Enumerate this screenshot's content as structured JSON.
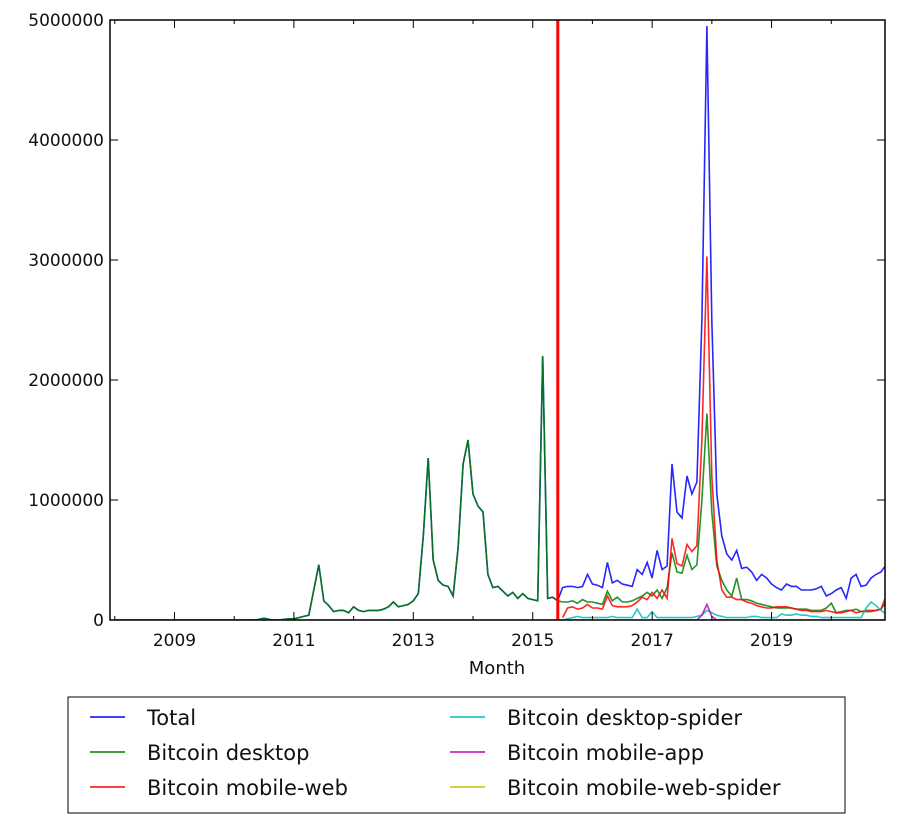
{
  "chart_data": {
    "type": "line",
    "title": "",
    "xlabel": "Month",
    "ylabel": "",
    "xlim": [
      2007.92,
      2020.9
    ],
    "ylim": [
      0,
      5000000
    ],
    "x_ticks": [
      2009,
      2011,
      2013,
      2015,
      2017,
      2019
    ],
    "x_minor_ticks": [
      2008,
      2010,
      2012,
      2014,
      2016,
      2018,
      2020
    ],
    "y_ticks": [
      0,
      1000000,
      2000000,
      3000000,
      4000000,
      5000000
    ],
    "y_tick_labels": [
      "0",
      "1000000",
      "2000000",
      "3000000",
      "4000000",
      "5000000"
    ],
    "grid": false,
    "legend_placement": "below",
    "annotations": [
      {
        "type": "vline",
        "x": 2015.42,
        "color": "#ff0000"
      }
    ],
    "series": [
      {
        "name": "Total",
        "color": "#0000ff",
        "start": "2008-01",
        "values": [
          0,
          0,
          0,
          0,
          0,
          0,
          0,
          0,
          0,
          0,
          0,
          0,
          0,
          0,
          0,
          0,
          0,
          0,
          0,
          0,
          0,
          0,
          0,
          0,
          0,
          0,
          0,
          0,
          0,
          5000,
          15000,
          5000,
          0,
          0,
          5000,
          10000,
          10000,
          20000,
          30000,
          40000,
          250000,
          460000,
          160000,
          120000,
          70000,
          80000,
          80000,
          60000,
          110000,
          80000,
          70000,
          80000,
          80000,
          80000,
          90000,
          110000,
          150000,
          110000,
          120000,
          130000,
          160000,
          220000,
          700000,
          1350000,
          500000,
          330000,
          290000,
          280000,
          200000,
          600000,
          1300000,
          1500000,
          1050000,
          950000,
          900000,
          380000,
          270000,
          280000,
          240000,
          200000,
          230000,
          180000,
          220000,
          180000,
          170000,
          160000,
          2200000,
          180000,
          190000,
          160000,
          270000,
          280000,
          280000,
          270000,
          280000,
          380000,
          300000,
          290000,
          270000,
          480000,
          310000,
          330000,
          300000,
          290000,
          280000,
          420000,
          380000,
          480000,
          350000,
          580000,
          420000,
          450000,
          1300000,
          900000,
          850000,
          1200000,
          1050000,
          1150000,
          2500000,
          4950000,
          2500000,
          1050000,
          700000,
          550000,
          500000,
          580000,
          430000,
          440000,
          400000,
          330000,
          380000,
          350000,
          300000,
          270000,
          250000,
          300000,
          280000,
          280000,
          250000,
          250000,
          250000,
          260000,
          280000,
          200000,
          220000,
          250000,
          270000,
          180000,
          350000,
          380000,
          280000,
          290000,
          350000,
          380000,
          400000,
          460000
        ]
      },
      {
        "name": "Bitcoin desktop",
        "color": "#008000",
        "start": "2008-01",
        "values": [
          0,
          0,
          0,
          0,
          0,
          0,
          0,
          0,
          0,
          0,
          0,
          0,
          0,
          0,
          0,
          0,
          0,
          0,
          0,
          0,
          0,
          0,
          0,
          0,
          0,
          0,
          0,
          0,
          0,
          5000,
          15000,
          5000,
          0,
          0,
          5000,
          10000,
          10000,
          20000,
          30000,
          40000,
          250000,
          460000,
          160000,
          120000,
          70000,
          80000,
          80000,
          60000,
          110000,
          80000,
          70000,
          80000,
          80000,
          80000,
          90000,
          110000,
          150000,
          110000,
          120000,
          130000,
          160000,
          220000,
          700000,
          1350000,
          500000,
          330000,
          290000,
          280000,
          200000,
          600000,
          1300000,
          1500000,
          1050000,
          950000,
          900000,
          380000,
          270000,
          280000,
          240000,
          200000,
          230000,
          180000,
          220000,
          180000,
          170000,
          160000,
          2200000,
          180000,
          190000,
          160000,
          150000,
          150000,
          160000,
          140000,
          170000,
          150000,
          150000,
          140000,
          130000,
          240000,
          160000,
          190000,
          150000,
          150000,
          160000,
          180000,
          200000,
          230000,
          200000,
          250000,
          180000,
          270000,
          560000,
          400000,
          390000,
          540000,
          420000,
          460000,
          1000000,
          1720000,
          900000,
          450000,
          330000,
          250000,
          200000,
          350000,
          170000,
          170000,
          160000,
          140000,
          130000,
          120000,
          110000,
          100000,
          100000,
          100000,
          100000,
          90000,
          90000,
          90000,
          80000,
          80000,
          80000,
          100000,
          140000,
          60000,
          70000,
          80000,
          80000,
          90000,
          70000,
          70000,
          70000,
          80000,
          90000,
          150000
        ]
      },
      {
        "name": "Bitcoin mobile-web",
        "color": "#ff0000",
        "start": "2015-07",
        "values": [
          20000,
          100000,
          110000,
          90000,
          100000,
          130000,
          100000,
          100000,
          90000,
          200000,
          120000,
          110000,
          110000,
          110000,
          120000,
          150000,
          190000,
          170000,
          230000,
          180000,
          250000,
          180000,
          680000,
          470000,
          450000,
          630000,
          570000,
          620000,
          1500000,
          3030000,
          1200000,
          500000,
          250000,
          190000,
          190000,
          170000,
          170000,
          150000,
          140000,
          120000,
          110000,
          100000,
          100000,
          110000,
          110000,
          110000,
          100000,
          90000,
          80000,
          80000,
          70000,
          70000,
          70000,
          80000,
          70000,
          60000,
          60000,
          70000,
          80000,
          60000,
          70000,
          80000,
          80000,
          80000,
          90000,
          200000
        ]
      },
      {
        "name": "Bitcoin desktop-spider",
        "color": "#00bfbf",
        "start": "2015-07",
        "values": [
          0,
          10000,
          20000,
          30000,
          20000,
          20000,
          20000,
          20000,
          20000,
          20000,
          30000,
          20000,
          20000,
          20000,
          20000,
          90000,
          20000,
          20000,
          70000,
          20000,
          20000,
          20000,
          20000,
          20000,
          20000,
          20000,
          20000,
          30000,
          40000,
          80000,
          60000,
          40000,
          30000,
          20000,
          20000,
          20000,
          20000,
          20000,
          30000,
          30000,
          20000,
          20000,
          20000,
          20000,
          50000,
          40000,
          40000,
          50000,
          40000,
          40000,
          30000,
          30000,
          20000,
          20000,
          20000,
          20000,
          20000,
          20000,
          20000,
          20000,
          20000,
          100000,
          150000,
          120000,
          80000,
          50000
        ]
      },
      {
        "name": "Bitcoin mobile-app",
        "color": "#bf00bf",
        "start": "2017-04",
        "values": [
          0,
          0,
          0,
          0,
          0,
          0,
          0,
          40000,
          130000,
          30000,
          0,
          0,
          0
        ]
      },
      {
        "name": "Bitcoin mobile-web-spider",
        "color": "#bfbf00",
        "start": "2008-01",
        "values": [
          0,
          0,
          0,
          0,
          0,
          0,
          0,
          0,
          0,
          0,
          0,
          0,
          0,
          0,
          0,
          0,
          0,
          0,
          0,
          0,
          0,
          0,
          0,
          0,
          0,
          0,
          0,
          0,
          0,
          0,
          0,
          0,
          0,
          0,
          0,
          0,
          0,
          0,
          0,
          0,
          0,
          0,
          0,
          0,
          0,
          0,
          0,
          0,
          0,
          0,
          0,
          0,
          0,
          0,
          0,
          0,
          0,
          0,
          0,
          0,
          0,
          0,
          0,
          0,
          0,
          0,
          0,
          0,
          0,
          0,
          0,
          0,
          0,
          0,
          0,
          0,
          0,
          0,
          0,
          0,
          0,
          0,
          0,
          0,
          0,
          0,
          0,
          0,
          0,
          0,
          0,
          0,
          0,
          0,
          0,
          0,
          0,
          0,
          0,
          0,
          0,
          0,
          0,
          0,
          0,
          0,
          0,
          0,
          0,
          0,
          0,
          0,
          0,
          0,
          0,
          0,
          0,
          0,
          0,
          0,
          0,
          0,
          0,
          0,
          0,
          0,
          0,
          0,
          0,
          0,
          0,
          0,
          0,
          0,
          0,
          0,
          0,
          0,
          0,
          0,
          0,
          0,
          0,
          0,
          0,
          0,
          0,
          0,
          0,
          0,
          0,
          0,
          0,
          0,
          0,
          0
        ]
      }
    ]
  }
}
